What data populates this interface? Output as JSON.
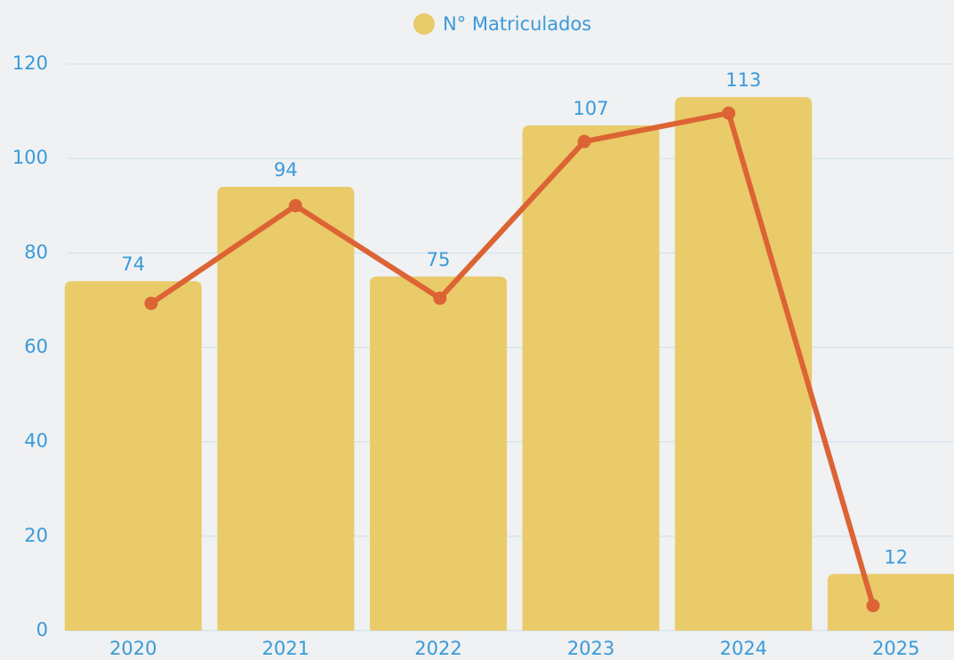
{
  "chart_data": {
    "type": "bar",
    "categories": [
      "2020",
      "2021",
      "2022",
      "2023",
      "2024",
      "2025"
    ],
    "series": [
      {
        "name": "N° Matriculados",
        "type": "bar",
        "color": "#e9cb69",
        "values": [
          74,
          94,
          75,
          107,
          113,
          12
        ]
      },
      {
        "type": "line",
        "color": "#dc6434",
        "values": [
          69.3,
          90,
          70.4,
          103.6,
          109.6,
          5.3
        ]
      }
    ],
    "ylim": [
      0,
      120
    ],
    "yticks": [
      0,
      20,
      40,
      60,
      80,
      100,
      120
    ],
    "grid": true,
    "legend": "top"
  }
}
